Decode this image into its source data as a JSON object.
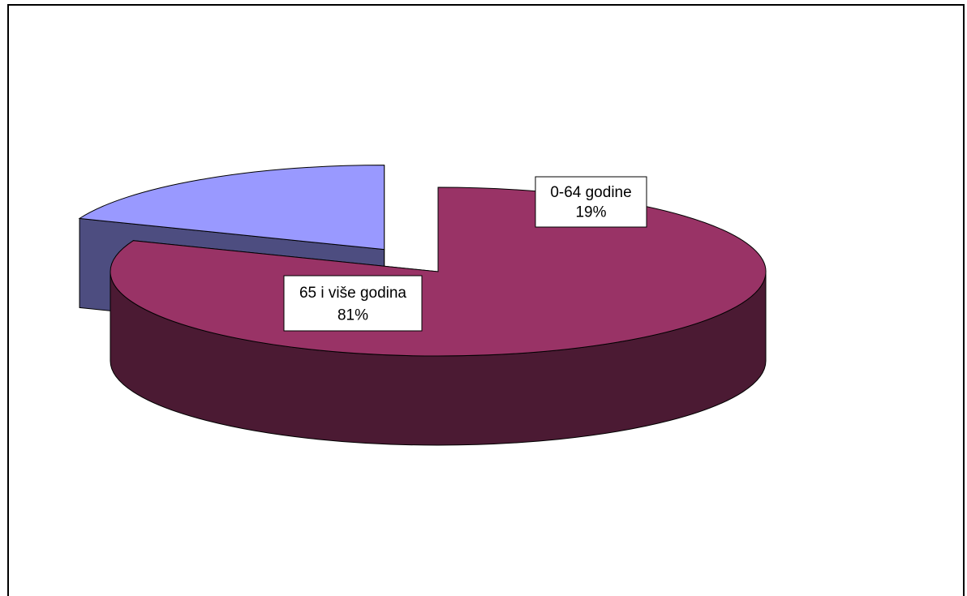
{
  "chart_data": {
    "type": "pie",
    "title": "",
    "style": "3d",
    "slices": [
      {
        "label": "65 i više godina",
        "value": 81,
        "percent_label": "81%",
        "color": "#993366",
        "side_color": "#4b1a33",
        "exploded": false
      },
      {
        "label": "0-64 godine",
        "value": 19,
        "percent_label": "19%",
        "color": "#9999ff",
        "side_color": "#4d4d80",
        "exploded": true
      }
    ],
    "legend": "none",
    "data_labels": "category and percent"
  }
}
